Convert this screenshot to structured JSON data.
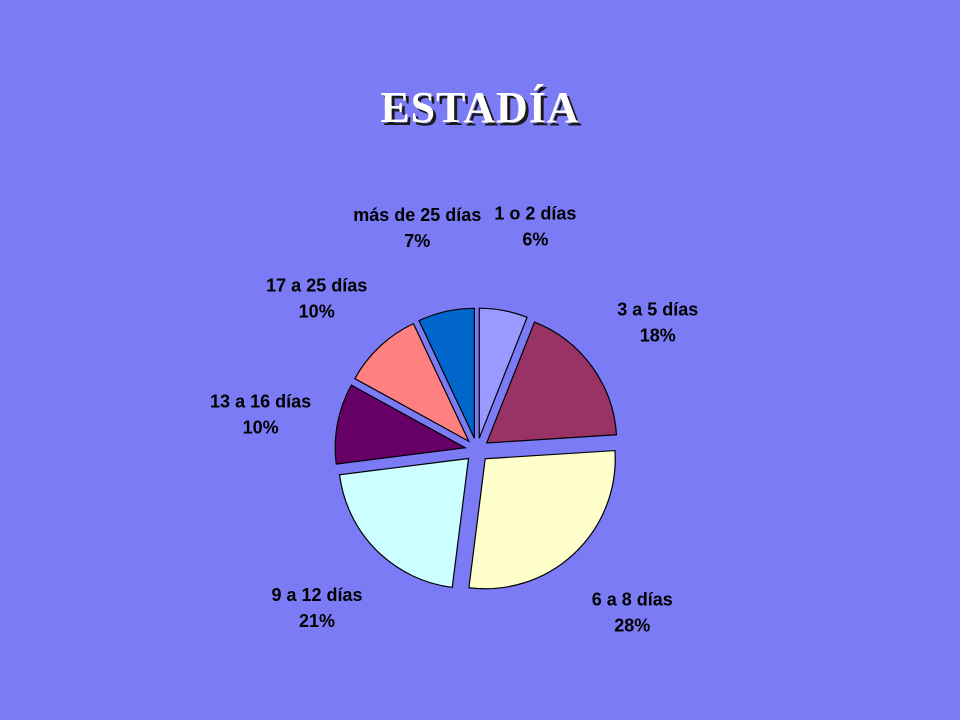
{
  "slide": {
    "title": "ESTADÍA"
  },
  "chart_data": {
    "type": "pie",
    "title": "ESTADÍA",
    "start_angle_deg": 0,
    "direction": "clockwise",
    "exploded": true,
    "slices": [
      {
        "category": "1 o 2 días",
        "value": 6,
        "label_pct": "6%",
        "color": "#9999ff"
      },
      {
        "category": "3 a 5 días",
        "value": 18,
        "label_pct": "18%",
        "color": "#993366"
      },
      {
        "category": "6 a 8 días",
        "value": 28,
        "label_pct": "28%",
        "color": "#ffffcc"
      },
      {
        "category": "9 a 12 días",
        "value": 21,
        "label_pct": "21%",
        "color": "#ccffff"
      },
      {
        "category": "13 a 16 días",
        "value": 10,
        "label_pct": "10%",
        "color": "#660066"
      },
      {
        "category": "17 a 25 días",
        "value": 10,
        "label_pct": "10%",
        "color": "#ff8080"
      },
      {
        "category": "más de 25 días",
        "value": 7,
        "label_pct": "7%",
        "color": "#0066cc"
      }
    ]
  }
}
